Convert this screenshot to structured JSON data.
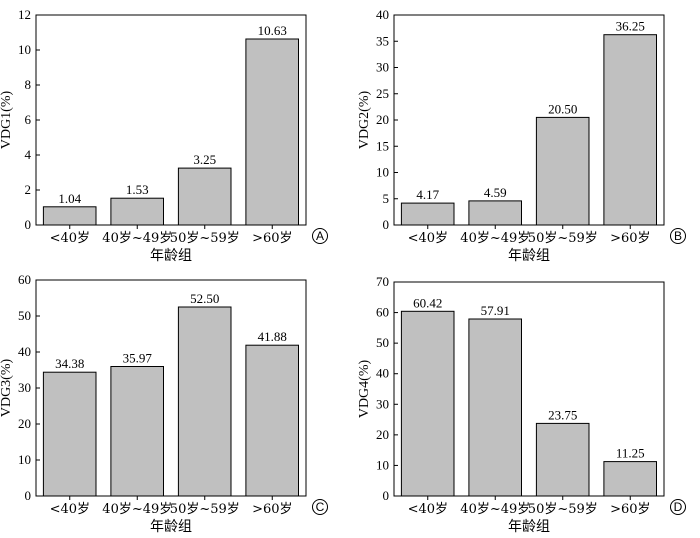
{
  "chart_data": [
    {
      "type": "bar",
      "panel": "A",
      "categories": [
        "<40岁",
        "40岁~49岁",
        "50岁~59岁",
        ">60岁"
      ],
      "values": [
        1.04,
        1.53,
        3.25,
        10.63
      ],
      "value_labels": [
        "1.04",
        "1.53",
        "3.25",
        "10.63"
      ],
      "ylabel": "VDG1(%)",
      "xlabel": "年龄组",
      "ylim": [
        0,
        12
      ],
      "yticks": [
        0,
        2,
        4,
        6,
        8,
        10,
        12
      ],
      "bar_color": "#c0c0c0"
    },
    {
      "type": "bar",
      "panel": "B",
      "categories": [
        "<40岁",
        "40岁~49岁",
        "50岁~59岁",
        ">60岁"
      ],
      "values": [
        4.17,
        4.59,
        20.5,
        36.25
      ],
      "value_labels": [
        "4.17",
        "4.59",
        "20.50",
        "36.25"
      ],
      "ylabel": "VDG2(%)",
      "xlabel": "年龄组",
      "ylim": [
        0,
        40
      ],
      "yticks": [
        0,
        5,
        10,
        15,
        20,
        25,
        30,
        35,
        40
      ],
      "bar_color": "#c0c0c0"
    },
    {
      "type": "bar",
      "panel": "C",
      "categories": [
        "<40岁",
        "40岁~49岁",
        "50岁~59岁",
        ">60岁"
      ],
      "values": [
        34.38,
        35.97,
        52.5,
        41.88
      ],
      "value_labels": [
        "34.38",
        "35.97",
        "52.50",
        "41.88"
      ],
      "ylabel": "VDG3(%)",
      "xlabel": "年龄组",
      "ylim": [
        0,
        60
      ],
      "yticks": [
        0,
        10,
        20,
        30,
        40,
        50,
        60
      ],
      "bar_color": "#c0c0c0"
    },
    {
      "type": "bar",
      "panel": "D",
      "categories": [
        "<40岁",
        "40岁~49岁",
        "50岁~59岁",
        ">60岁"
      ],
      "values": [
        60.42,
        57.91,
        23.75,
        11.25
      ],
      "value_labels": [
        "60.42",
        "57.91",
        "23.75",
        "11.25"
      ],
      "ylabel": "VDG4(%)",
      "xlabel": "年龄组",
      "ylim": [
        0,
        70
      ],
      "yticks": [
        0,
        10,
        20,
        30,
        40,
        50,
        60,
        70
      ],
      "bar_color": "#c0c0c0"
    }
  ]
}
